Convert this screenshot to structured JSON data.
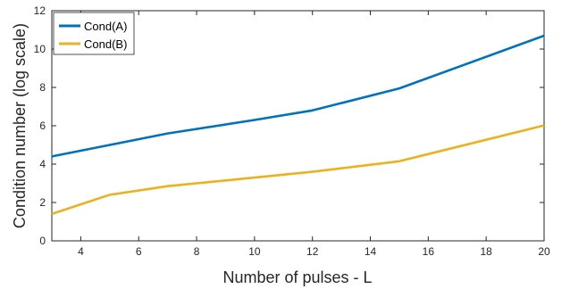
{
  "chart_data": {
    "type": "line",
    "title": "",
    "xlabel": "Number of pulses - L",
    "ylabel": "Condition number (log scale)",
    "xlim": [
      3,
      20
    ],
    "ylim": [
      0,
      12
    ],
    "x_ticks": [
      4,
      6,
      8,
      10,
      12,
      14,
      16,
      18,
      20
    ],
    "y_ticks": [
      0,
      2,
      4,
      6,
      8,
      10,
      12
    ],
    "grid": false,
    "legend_position": "top-left",
    "series": [
      {
        "name": "Cond(A)",
        "color": "#0072BD",
        "x": [
          3,
          5,
          7,
          10,
          12,
          15,
          20
        ],
        "y": [
          4.4,
          5.0,
          5.6,
          6.3,
          6.8,
          7.95,
          10.7
        ]
      },
      {
        "name": "Cond(B)",
        "color": "#EDB120",
        "x": [
          3,
          5,
          7,
          10,
          12,
          15,
          20
        ],
        "y": [
          1.4,
          2.4,
          2.85,
          3.3,
          3.6,
          4.15,
          6.02
        ]
      }
    ]
  }
}
